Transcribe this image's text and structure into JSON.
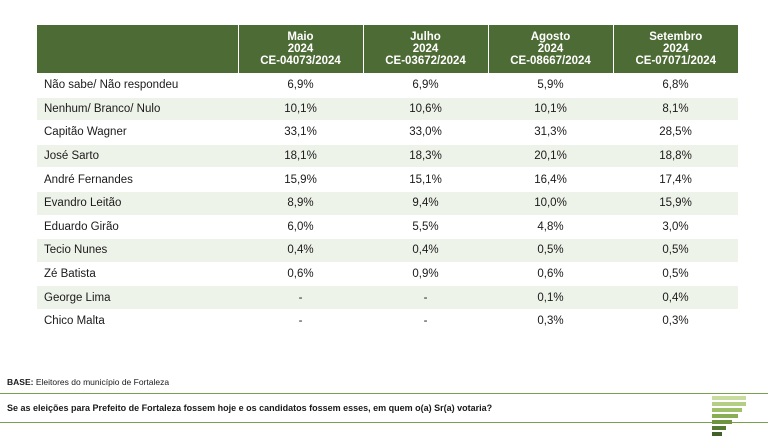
{
  "chart_data": {
    "type": "table",
    "columns": [
      {
        "month": "Maio",
        "year": "2024",
        "code": "CE-04073/2024"
      },
      {
        "month": "Julho",
        "year": "2024",
        "code": "CE-03672/2024"
      },
      {
        "month": "Agosto",
        "year": "2024",
        "code": "CE-08667/2024"
      },
      {
        "month": "Setembro",
        "year": "2024",
        "code": "CE-07071/2024"
      }
    ],
    "rows": [
      {
        "name": "Não sabe/ Não respondeu",
        "values": [
          "6,9%",
          "6,9%",
          "5,9%",
          "6,8%"
        ]
      },
      {
        "name": "Nenhum/ Branco/ Nulo",
        "values": [
          "10,1%",
          "10,6%",
          "10,1%",
          "8,1%"
        ]
      },
      {
        "name": "Capitão Wagner",
        "values": [
          "33,1%",
          "33,0%",
          "31,3%",
          "28,5%"
        ]
      },
      {
        "name": "José Sarto",
        "values": [
          "18,1%",
          "18,3%",
          "20,1%",
          "18,8%"
        ]
      },
      {
        "name": "André Fernandes",
        "values": [
          "15,9%",
          "15,1%",
          "16,4%",
          "17,4%"
        ]
      },
      {
        "name": "Evandro Leitão",
        "values": [
          "8,9%",
          "9,4%",
          "10,0%",
          "15,9%"
        ]
      },
      {
        "name": "Eduardo Girão",
        "values": [
          "6,0%",
          "5,5%",
          "4,8%",
          "3,0%"
        ]
      },
      {
        "name": "Tecio Nunes",
        "values": [
          "0,4%",
          "0,4%",
          "0,5%",
          "0,5%"
        ]
      },
      {
        "name": "Zé Batista",
        "values": [
          "0,6%",
          "0,9%",
          "0,6%",
          "0,5%"
        ]
      },
      {
        "name": "George Lima",
        "values": [
          "-",
          "-",
          "0,1%",
          "0,4%"
        ]
      },
      {
        "name": "Chico Malta",
        "values": [
          "-",
          "-",
          "0,3%",
          "0,3%"
        ]
      }
    ]
  },
  "footer": {
    "base_label": "BASE:",
    "base_text": "Eleitores do município de Fortaleza",
    "question": "Se as eleições para Prefeito de Fortaleza fossem hoje e os candidatos fossem esses, em quem o(a) Sr(a) votaria?"
  },
  "colors": {
    "header_bg": "#4d6b35",
    "row_alt_bg": "#eef3e9",
    "accent": "#7aa04e"
  },
  "logo": {
    "icon": "stacked-bars-logo-icon"
  }
}
